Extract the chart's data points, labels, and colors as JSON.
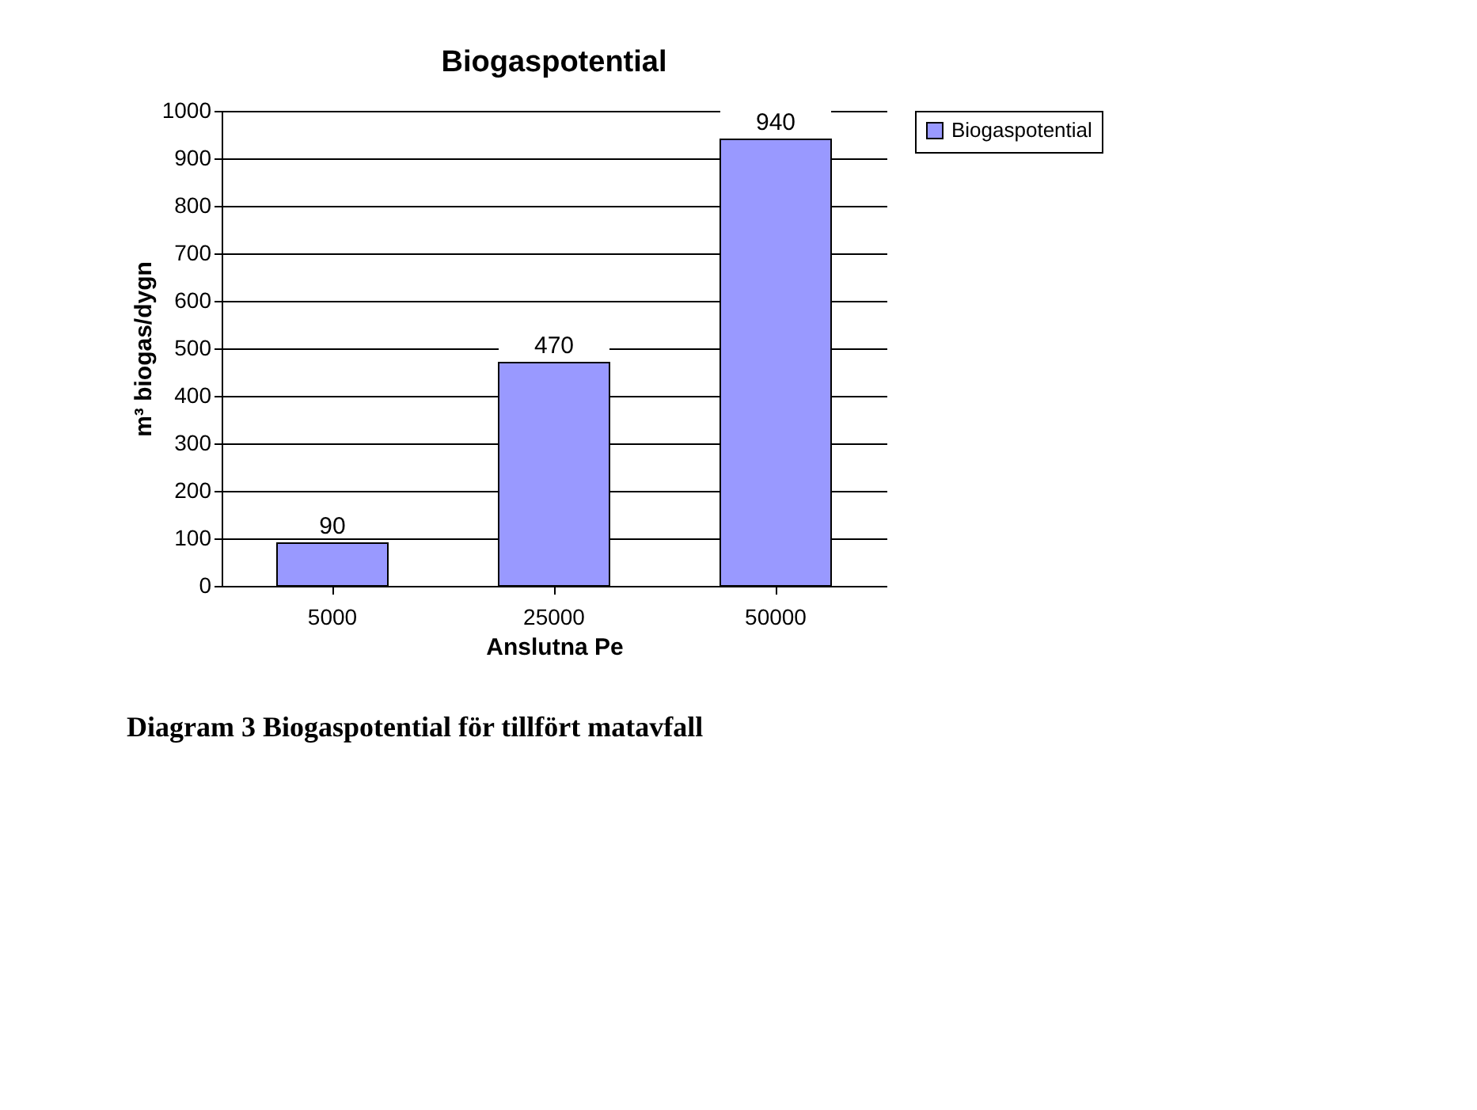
{
  "chart_data": {
    "type": "bar",
    "title": "Biogaspotential",
    "xlabel": "Anslutna Pe",
    "ylabel": "m³ biogas/dygn",
    "categories": [
      "5000",
      "25000",
      "50000"
    ],
    "series": [
      {
        "name": "Biogaspotential",
        "color": "#9999ff",
        "values": [
          90,
          470,
          940
        ]
      }
    ],
    "ylim": [
      0,
      1000
    ],
    "yticks": [
      0,
      100,
      200,
      300,
      400,
      500,
      600,
      700,
      800,
      900,
      1000
    ],
    "grid": "y",
    "legend": "right",
    "data_labels": true,
    "annotations": [
      "Diagram 3 Biogaspotential för tillfört matavfall"
    ]
  }
}
